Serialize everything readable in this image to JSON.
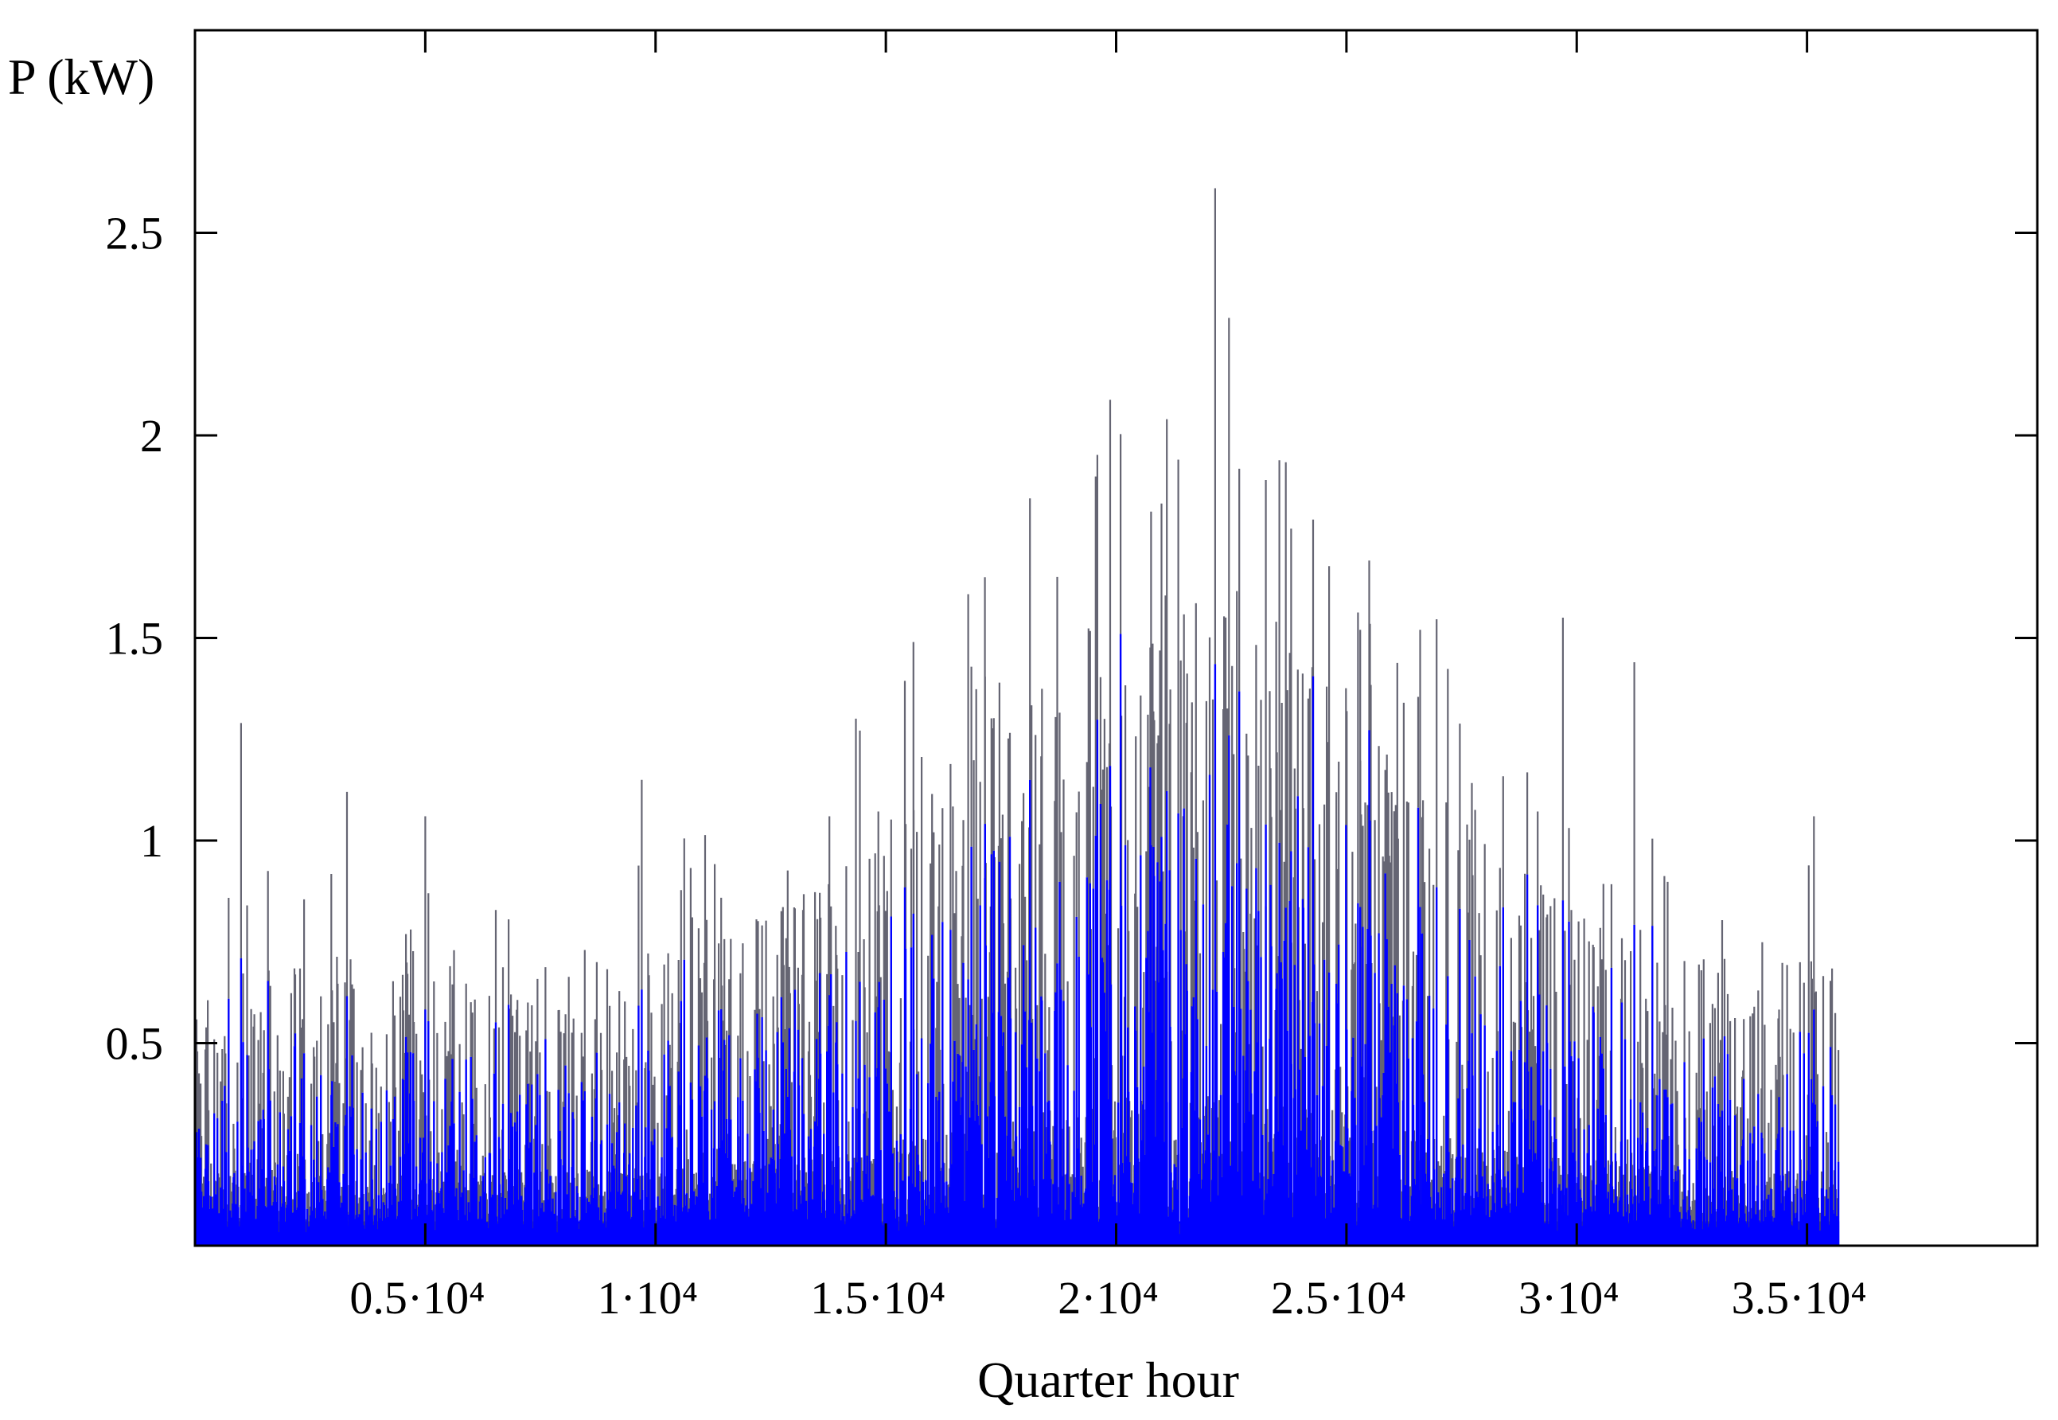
{
  "chart_data": {
    "type": "line",
    "title": "",
    "xlabel": "Quarter hour",
    "ylabel": "P (kW)",
    "xlim": [
      0,
      40000
    ],
    "ylim": [
      0,
      3.0
    ],
    "grid": false,
    "xticks": [
      {
        "value": 5000,
        "label": "0.5·10⁴"
      },
      {
        "value": 10000,
        "label": "1·10⁴"
      },
      {
        "value": 15000,
        "label": "1.5·10⁴"
      },
      {
        "value": 20000,
        "label": "2·10⁴"
      },
      {
        "value": 25000,
        "label": "2.5·10⁴"
      },
      {
        "value": 30000,
        "label": "3·10⁴"
      },
      {
        "value": 35000,
        "label": "3.5·10⁴"
      }
    ],
    "yticks": [
      {
        "value": 0.5,
        "label": "0.5"
      },
      {
        "value": 1,
        "label": "1"
      },
      {
        "value": 1.5,
        "label": "1.5"
      },
      {
        "value": 2,
        "label": "2"
      },
      {
        "value": 2.5,
        "label": "2.5"
      }
    ],
    "series": [
      {
        "color": "#0000ff",
        "peak_color": "#4a4a5a",
        "x_range": [
          0,
          35700
        ],
        "notable_peaks": [
          {
            "x": 22150,
            "y": 2.61
          },
          {
            "x": 22450,
            "y": 2.29
          },
          {
            "x": 21100,
            "y": 2.04
          },
          {
            "x": 21350,
            "y": 1.94
          },
          {
            "x": 23250,
            "y": 1.89
          },
          {
            "x": 23800,
            "y": 1.77
          },
          {
            "x": 17150,
            "y": 1.65
          },
          {
            "x": 29700,
            "y": 1.55
          },
          {
            "x": 31250,
            "y": 1.44
          },
          {
            "x": 25300,
            "y": 1.52
          },
          {
            "x": 26600,
            "y": 1.52
          },
          {
            "x": 15600,
            "y": 1.49
          },
          {
            "x": 1000,
            "y": 1.29
          },
          {
            "x": 9700,
            "y": 1.15
          },
          {
            "x": 3300,
            "y": 1.12
          },
          {
            "x": 5000,
            "y": 1.06
          },
          {
            "x": 35150,
            "y": 1.06
          }
        ]
      }
    ]
  }
}
